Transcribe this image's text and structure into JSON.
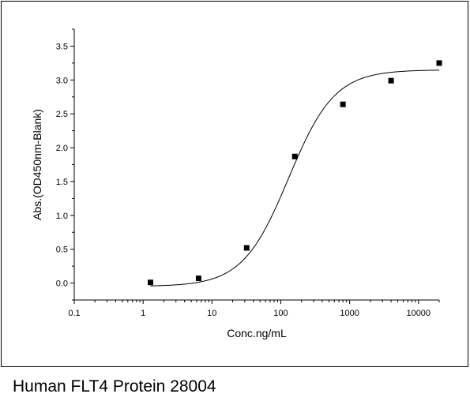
{
  "caption": "Human FLT4 Protein 28004",
  "chart_data": {
    "type": "scatter",
    "xlabel": "Conc.ng/mL",
    "ylabel": "Abs.(OD450nm-Blank)",
    "xscale": "log",
    "xlim": [
      0.1,
      20000
    ],
    "ylim": [
      -0.25,
      3.75
    ],
    "x_ticks": [
      {
        "value": 0.1,
        "label": "0.1"
      },
      {
        "value": 1,
        "label": "1"
      },
      {
        "value": 10,
        "label": "10"
      },
      {
        "value": 100,
        "label": "100"
      },
      {
        "value": 1000,
        "label": "1000"
      },
      {
        "value": 10000,
        "label": "10000"
      }
    ],
    "y_ticks": [
      {
        "value": 0.0,
        "label": "0.0"
      },
      {
        "value": 0.5,
        "label": "0.5"
      },
      {
        "value": 1.0,
        "label": "1.0"
      },
      {
        "value": 1.5,
        "label": "1.5"
      },
      {
        "value": 2.0,
        "label": "2.0"
      },
      {
        "value": 2.5,
        "label": "2.5"
      },
      {
        "value": 3.0,
        "label": "3.0"
      },
      {
        "value": 3.5,
        "label": "3.5"
      }
    ],
    "points": [
      {
        "x": 1.28,
        "y": 0.01
      },
      {
        "x": 6.4,
        "y": 0.07
      },
      {
        "x": 32,
        "y": 0.52
      },
      {
        "x": 160,
        "y": 1.87
      },
      {
        "x": 800,
        "y": 2.64
      },
      {
        "x": 4000,
        "y": 2.99
      },
      {
        "x": 20000,
        "y": 3.25
      }
    ],
    "fit": {
      "bottom": -0.05,
      "top": 3.15,
      "ec50": 130,
      "hill": 1.3
    },
    "marker_color": "#000000",
    "line_color": "#000000",
    "grid": false
  }
}
